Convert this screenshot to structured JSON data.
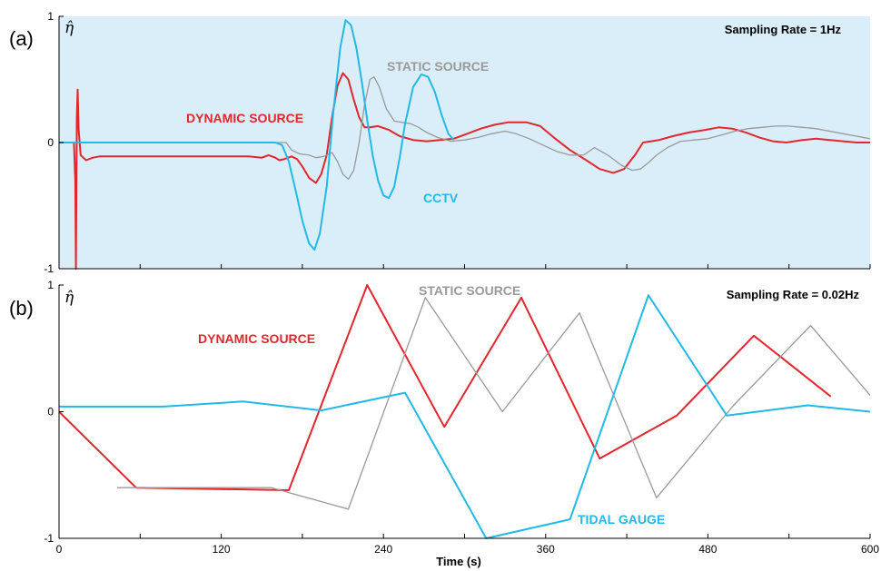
{
  "colors": {
    "dynamic": "#e3262d",
    "static": "#999999",
    "blue": "#22b9e6",
    "panel_a_bg": "#daeef9"
  },
  "xaxis": {
    "label": "Time (s)",
    "ticks": [
      "0",
      "120",
      "240",
      "360",
      "480",
      "600"
    ],
    "tick_values": [
      0,
      120,
      240,
      360,
      480,
      600
    ],
    "lim": [
      0,
      600
    ]
  },
  "chart_data": [
    {
      "type": "line",
      "panel": "(a)",
      "ylabel": "η̂",
      "annotation": "Sampling Rate = 1Hz",
      "ylim": [
        -1,
        1
      ],
      "yticks": [
        "1",
        "0",
        "-1"
      ],
      "background": "shaded",
      "series": [
        {
          "name": "DYNAMIC SOURCE",
          "color_key": "dynamic",
          "points": [
            [
              0,
              0
            ],
            [
              11,
              0
            ],
            [
              12,
              -0.3
            ],
            [
              12.5,
              -1
            ],
            [
              13.2,
              0.2
            ],
            [
              13.8,
              0.42
            ],
            [
              14.5,
              0.1
            ],
            [
              16,
              -0.1
            ],
            [
              20,
              -0.14
            ],
            [
              25,
              -0.12
            ],
            [
              30,
              -0.11
            ],
            [
              60,
              -0.11
            ],
            [
              100,
              -0.11
            ],
            [
              140,
              -0.11
            ],
            [
              150,
              -0.12
            ],
            [
              155,
              -0.1
            ],
            [
              160,
              -0.12
            ],
            [
              163,
              -0.14
            ],
            [
              167,
              -0.13
            ],
            [
              172,
              -0.11
            ],
            [
              176,
              -0.13
            ],
            [
              180,
              -0.19
            ],
            [
              185,
              -0.28
            ],
            [
              190,
              -0.32
            ],
            [
              194,
              -0.25
            ],
            [
              198,
              -0.1
            ],
            [
              202,
              0.2
            ],
            [
              206,
              0.45
            ],
            [
              210,
              0.55
            ],
            [
              214,
              0.5
            ],
            [
              218,
              0.34
            ],
            [
              222,
              0.2
            ],
            [
              226,
              0.12
            ],
            [
              230,
              0.12
            ],
            [
              236,
              0.13
            ],
            [
              244,
              0.1
            ],
            [
              252,
              0.05
            ],
            [
              262,
              0.02
            ],
            [
              272,
              0.01
            ],
            [
              282,
              0.02
            ],
            [
              292,
              0.03
            ],
            [
              302,
              0.07
            ],
            [
              312,
              0.11
            ],
            [
              322,
              0.14
            ],
            [
              332,
              0.16
            ],
            [
              346,
              0.16
            ],
            [
              356,
              0.13
            ],
            [
              366,
              0.04
            ],
            [
              378,
              -0.06
            ],
            [
              390,
              -0.14
            ],
            [
              400,
              -0.21
            ],
            [
              410,
              -0.24
            ],
            [
              418,
              -0.21
            ],
            [
              426,
              -0.1
            ],
            [
              432,
              0
            ],
            [
              444,
              0.02
            ],
            [
              454,
              0.05
            ],
            [
              466,
              0.08
            ],
            [
              478,
              0.1
            ],
            [
              488,
              0.12
            ],
            [
              498,
              0.11
            ],
            [
              508,
              0.08
            ],
            [
              518,
              0.04
            ],
            [
              528,
              0.01
            ],
            [
              538,
              0
            ],
            [
              550,
              0.02
            ],
            [
              560,
              0.03
            ],
            [
              570,
              0.02
            ],
            [
              580,
              0.01
            ],
            [
              590,
              0
            ],
            [
              600,
              0
            ]
          ]
        },
        {
          "name": "STATIC SOURCE",
          "color_key": "static",
          "points": [
            [
              0,
              0
            ],
            [
              168,
              0
            ],
            [
              172,
              -0.06
            ],
            [
              178,
              -0.09
            ],
            [
              185,
              -0.1
            ],
            [
              190,
              -0.12
            ],
            [
              196,
              -0.11
            ],
            [
              202,
              -0.08
            ],
            [
              206,
              -0.15
            ],
            [
              210,
              -0.25
            ],
            [
              214,
              -0.29
            ],
            [
              218,
              -0.22
            ],
            [
              222,
              0
            ],
            [
              226,
              0.3
            ],
            [
              230,
              0.5
            ],
            [
              233,
              0.52
            ],
            [
              237,
              0.44
            ],
            [
              242,
              0.27
            ],
            [
              248,
              0.17
            ],
            [
              254,
              0.16
            ],
            [
              260,
              0.15
            ],
            [
              266,
              0.12
            ],
            [
              272,
              0.08
            ],
            [
              280,
              0.04
            ],
            [
              290,
              0.01
            ],
            [
              300,
              0.02
            ],
            [
              310,
              0.04
            ],
            [
              320,
              0.07
            ],
            [
              330,
              0.09
            ],
            [
              338,
              0.07
            ],
            [
              348,
              0.03
            ],
            [
              358,
              -0.02
            ],
            [
              368,
              -0.07
            ],
            [
              378,
              -0.1
            ],
            [
              388,
              -0.1
            ],
            [
              396,
              -0.04
            ],
            [
              406,
              -0.1
            ],
            [
              416,
              -0.18
            ],
            [
              424,
              -0.22
            ],
            [
              430,
              -0.21
            ],
            [
              436,
              -0.16
            ],
            [
              442,
              -0.1
            ],
            [
              450,
              -0.04
            ],
            [
              460,
              0.01
            ],
            [
              470,
              0.02
            ],
            [
              480,
              0.03
            ],
            [
              490,
              0.06
            ],
            [
              500,
              0.09
            ],
            [
              510,
              0.11
            ],
            [
              520,
              0.12
            ],
            [
              530,
              0.13
            ],
            [
              540,
              0.13
            ],
            [
              550,
              0.12
            ],
            [
              560,
              0.11
            ],
            [
              570,
              0.09
            ],
            [
              580,
              0.07
            ],
            [
              590,
              0.05
            ],
            [
              600,
              0.03
            ]
          ]
        },
        {
          "name": "CCTV",
          "color_key": "blue",
          "points": [
            [
              0,
              0
            ],
            [
              150,
              0
            ],
            [
              160,
              0
            ],
            [
              165,
              -0.02
            ],
            [
              170,
              -0.15
            ],
            [
              175,
              -0.38
            ],
            [
              180,
              -0.62
            ],
            [
              185,
              -0.8
            ],
            [
              189,
              -0.85
            ],
            [
              193,
              -0.72
            ],
            [
              198,
              -0.35
            ],
            [
              203,
              0.25
            ],
            [
              208,
              0.75
            ],
            [
              212,
              0.97
            ],
            [
              216,
              0.93
            ],
            [
              220,
              0.75
            ],
            [
              224,
              0.48
            ],
            [
              228,
              0.18
            ],
            [
              232,
              -0.1
            ],
            [
              236,
              -0.3
            ],
            [
              240,
              -0.42
            ],
            [
              244,
              -0.44
            ],
            [
              248,
              -0.35
            ],
            [
              252,
              -0.12
            ],
            [
              256,
              0.15
            ],
            [
              262,
              0.44
            ],
            [
              268,
              0.54
            ],
            [
              273,
              0.52
            ],
            [
              278,
              0.4
            ],
            [
              283,
              0.22
            ],
            [
              288,
              0.07
            ],
            [
              292,
              0.02
            ]
          ]
        }
      ]
    },
    {
      "type": "line",
      "panel": "(b)",
      "ylabel": "η̂",
      "annotation": "Sampling Rate = 0.02Hz",
      "ylim": [
        -1,
        1
      ],
      "yticks": [
        "1",
        "0",
        "-1"
      ],
      "series": [
        {
          "name": "DYNAMIC SOURCE",
          "color_key": "dynamic",
          "points": [
            [
              0,
              0
            ],
            [
              57,
              -0.6
            ],
            [
              170,
              -0.62
            ],
            [
              228,
              1
            ],
            [
              285,
              -0.12
            ],
            [
              342,
              0.9
            ],
            [
              400,
              -0.37
            ],
            [
              457,
              -0.03
            ],
            [
              514,
              0.6
            ],
            [
              571,
              0.12
            ]
          ]
        },
        {
          "name": "STATIC SOURCE",
          "color_key": "static",
          "points": [
            [
              43,
              -0.6
            ],
            [
              157,
              -0.6
            ],
            [
              214,
              -0.77
            ],
            [
              271,
              0.9
            ],
            [
              328,
              0
            ],
            [
              385,
              0.78
            ],
            [
              442,
              -0.68
            ],
            [
              499,
              0.05
            ],
            [
              556,
              0.68
            ],
            [
              600,
              0.13
            ]
          ]
        },
        {
          "name": "TIDAL GAUGE",
          "color_key": "blue",
          "points": [
            [
              0,
              0.04
            ],
            [
              77,
              0.04
            ],
            [
              136,
              0.08
            ],
            [
              194,
              0.01
            ],
            [
              256,
              0.15
            ],
            [
              316,
              -1
            ],
            [
              378,
              -0.85
            ],
            [
              436,
              0.92
            ],
            [
              494,
              -0.03
            ],
            [
              554,
              0.05
            ],
            [
              600,
              0
            ]
          ]
        }
      ]
    }
  ]
}
